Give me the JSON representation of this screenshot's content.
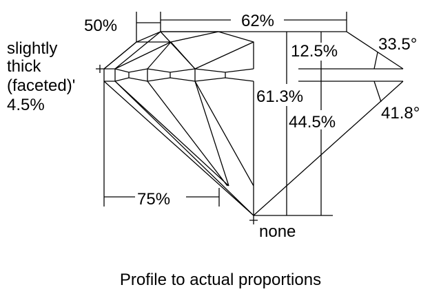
{
  "labels": {
    "table_pct": "62%",
    "crown_left_pct": "50%",
    "girdle_line1": "slightly",
    "girdle_line2": "thick",
    "girdle_line3": "(faceted)'",
    "girdle_pct": "4.5%",
    "crown_height": "12.5%",
    "crown_angle": "33.5°",
    "total_depth": "61.3%",
    "pavilion_depth": "44.5%",
    "pavilion_angle": "41.8°",
    "lower_half": "75%",
    "culet": "none"
  },
  "caption": "Profile to actual proportions"
}
